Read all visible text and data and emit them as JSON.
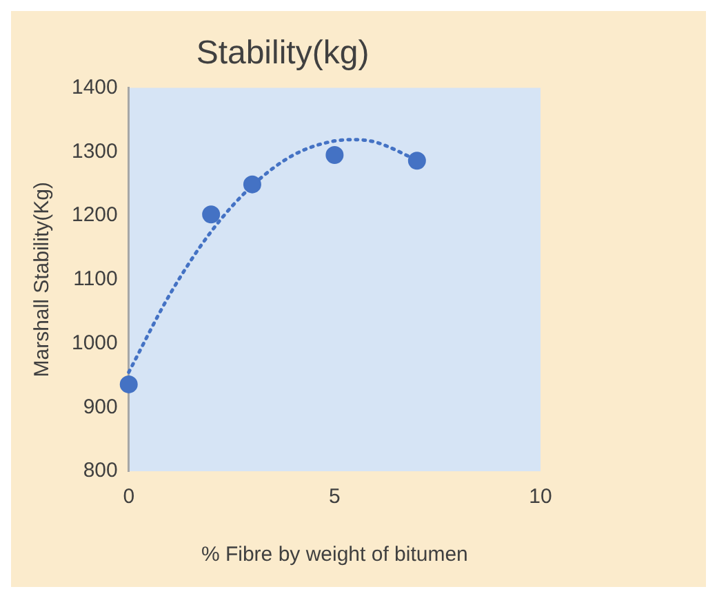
{
  "chart_data": {
    "type": "scatter",
    "title": "Stability(kg)",
    "xlabel": "% Fibre by weight of bitumen",
    "ylabel": "Marshall Stability(Kg)",
    "series": [
      {
        "color": "#4472c4",
        "x": [
          0,
          2,
          3,
          5,
          7
        ],
        "values": [
          936,
          1202,
          1249,
          1295,
          1286
        ],
        "marker": "circle"
      },
      {
        "type": "line",
        "color": "#4472c4",
        "x": [
          0,
          1,
          2,
          3,
          4,
          5,
          5.5,
          6,
          7
        ],
        "values": [
          955,
          1077,
          1175,
          1247,
          1295,
          1317,
          1319,
          1315,
          1287
        ],
        "marker": "none",
        "line_style": "dotted"
      }
    ],
    "xlim": [
      0,
      10
    ],
    "xticks": [
      0,
      5,
      10
    ],
    "ylim": [
      800,
      1400
    ],
    "yticks": [
      800,
      900,
      1000,
      1100,
      1200,
      1300,
      1400
    ],
    "grid": false,
    "legend": false
  }
}
